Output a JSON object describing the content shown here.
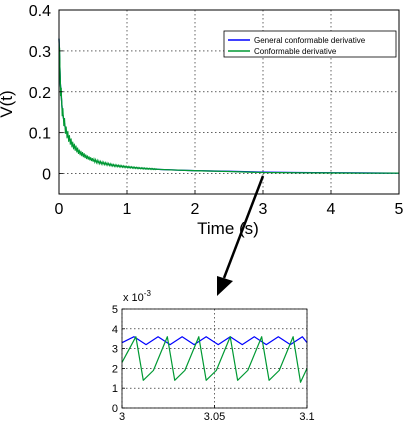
{
  "chart_data": [
    {
      "type": "line",
      "title": "",
      "xlabel": "Time (s)",
      "ylabel": "V(t)",
      "xlim": [
        0,
        5
      ],
      "ylim": [
        -0.05,
        0.4
      ],
      "xticks": [
        0,
        1,
        2,
        3,
        4,
        5
      ],
      "yticks": [
        0,
        0.1,
        0.2,
        0.3,
        0.4
      ],
      "xtick_labels": [
        "0",
        "1",
        "2",
        "3",
        "4",
        "5"
      ],
      "ytick_labels": [
        "0",
        "0.1",
        "0.2",
        "0.3",
        "0.4"
      ],
      "grid": true,
      "legend_position": "top-right",
      "series": [
        {
          "name": "General conformable derivative",
          "color": "#0000ff",
          "x": [
            0,
            0.02,
            0.05,
            0.1,
            0.15,
            0.2,
            0.3,
            0.4,
            0.5,
            0.6,
            0.8,
            1.0,
            1.2,
            1.5,
            1.8,
            2.0,
            2.5,
            3.0,
            3.5,
            4.0,
            4.5,
            5.0
          ],
          "y": [
            0.33,
            0.22,
            0.15,
            0.105,
            0.085,
            0.07,
            0.052,
            0.041,
            0.033,
            0.027,
            0.02,
            0.016,
            0.013,
            0.01,
            0.008,
            0.007,
            0.0055,
            0.0035,
            0.0025,
            0.002,
            0.0015,
            0.001
          ]
        },
        {
          "name": "Conformable derivative",
          "color": "#009933",
          "x": [
            0,
            0.02,
            0.05,
            0.1,
            0.15,
            0.2,
            0.3,
            0.4,
            0.5,
            0.6,
            0.8,
            1.0,
            1.2,
            1.5,
            1.8,
            2.0,
            2.5,
            3.0,
            3.5,
            4.0,
            4.5,
            5.0
          ],
          "y": [
            0.33,
            0.22,
            0.15,
            0.105,
            0.085,
            0.07,
            0.052,
            0.041,
            0.033,
            0.027,
            0.02,
            0.016,
            0.013,
            0.01,
            0.008,
            0.007,
            0.005,
            0.0025,
            0.002,
            0.0015,
            0.001,
            0.001
          ]
        }
      ]
    },
    {
      "type": "line",
      "title": "",
      "xlabel": "",
      "ylabel": "",
      "y_multiplier_label": "x 10",
      "y_multiplier_exp": "-3",
      "xlim": [
        3,
        3.1
      ],
      "ylim": [
        0,
        5
      ],
      "xticks": [
        3,
        3.05,
        3.1
      ],
      "yticks": [
        0,
        1,
        2,
        3,
        4,
        5
      ],
      "xtick_labels": [
        "3",
        "3.05",
        "3.1"
      ],
      "ytick_labels": [
        "0",
        "1",
        "2",
        "3",
        "4",
        "5"
      ],
      "grid": true,
      "series": [
        {
          "name": "General conformable derivative",
          "color": "#0000ff",
          "x": [
            3.0,
            3.0065,
            3.013,
            3.0195,
            3.026,
            3.0325,
            3.039,
            3.0455,
            3.052,
            3.0585,
            3.065,
            3.0715,
            3.078,
            3.0845,
            3.091,
            3.0975,
            3.1
          ],
          "y": [
            3.3,
            3.6,
            3.2,
            3.6,
            3.2,
            3.6,
            3.2,
            3.6,
            3.2,
            3.6,
            3.2,
            3.6,
            3.2,
            3.6,
            3.2,
            3.6,
            3.3
          ]
        },
        {
          "name": "Conformable derivative",
          "color": "#009933",
          "x": [
            3.0,
            3.0075,
            3.0115,
            3.017,
            3.0245,
            3.0285,
            3.034,
            3.0415,
            3.0455,
            3.051,
            3.0585,
            3.0625,
            3.068,
            3.0755,
            3.0795,
            3.085,
            3.0925,
            3.0965,
            3.1
          ],
          "y": [
            2.3,
            3.6,
            1.4,
            1.9,
            3.6,
            1.4,
            1.9,
            3.6,
            1.4,
            1.9,
            3.6,
            1.4,
            1.9,
            3.6,
            1.4,
            1.9,
            3.6,
            1.3,
            2.0
          ]
        }
      ]
    }
  ]
}
